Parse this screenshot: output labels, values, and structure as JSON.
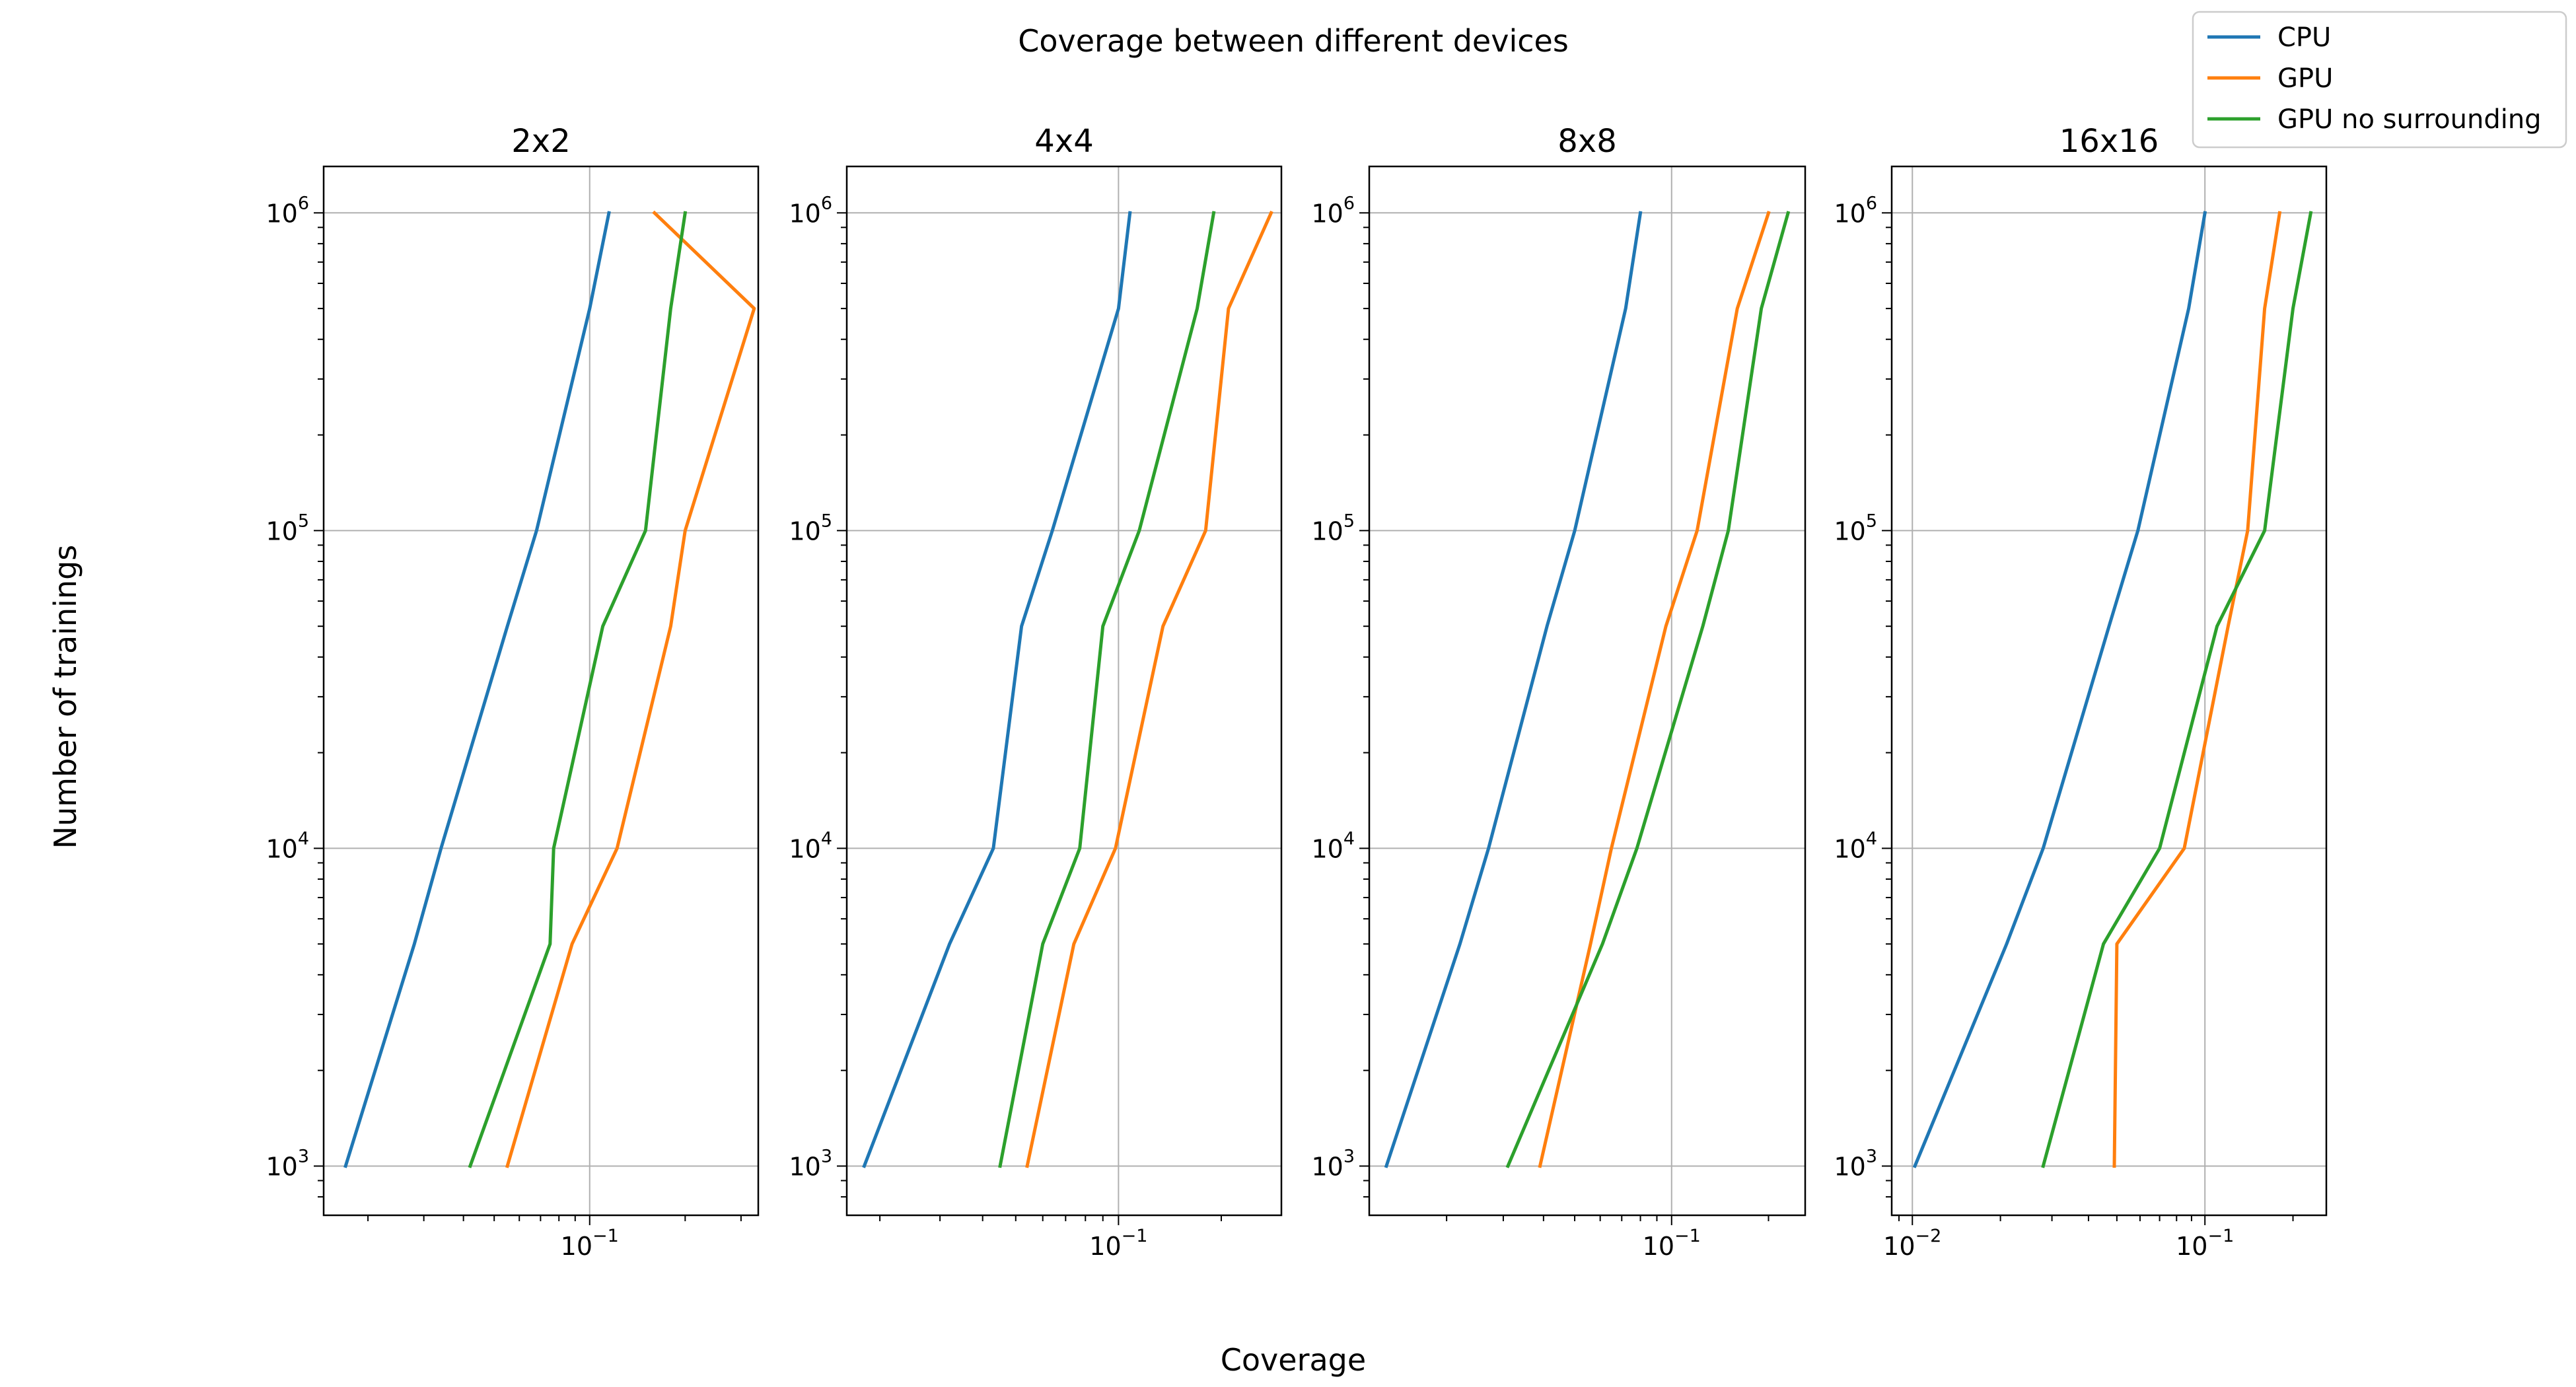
{
  "figure": {
    "suptitle": "Coverage between different devices",
    "xlabel": "Coverage",
    "ylabel": "Number of trainings"
  },
  "legend": {
    "placement": "top-right",
    "entries": [
      {
        "name": "CPU",
        "color": "#1f77b4"
      },
      {
        "name": "GPU",
        "color": "#ff7f0e"
      },
      {
        "name": "GPU no surrounding",
        "color": "#2ca02c"
      }
    ]
  },
  "tick_text": {
    "base": "10",
    "x_exp_minus1": "−1",
    "x_exp_minus2": "−2"
  },
  "chart_data": [
    {
      "type": "line",
      "title": "2x2",
      "x_scale": "log",
      "y_scale": "log",
      "xlim": [
        0.0145,
        0.34
      ],
      "ylim": [
        700,
        1400000
      ],
      "xticks": [
        {
          "value": 0.1,
          "exp": "−1"
        }
      ],
      "yticks": [
        {
          "value": 1000,
          "exp": "3"
        },
        {
          "value": 10000,
          "exp": "4"
        },
        {
          "value": 100000,
          "exp": "5"
        },
        {
          "value": 1000000,
          "exp": "6"
        }
      ],
      "grid": true,
      "series": [
        {
          "name": "CPU",
          "color": "#1f77b4",
          "points": [
            [
              0.017,
              1000
            ],
            [
              0.028,
              5000
            ],
            [
              0.034,
              10000
            ],
            [
              0.055,
              50000
            ],
            [
              0.068,
              100000
            ],
            [
              0.1,
              500000
            ],
            [
              0.115,
              1000000
            ]
          ]
        },
        {
          "name": "GPU",
          "color": "#ff7f0e",
          "points": [
            [
              0.055,
              1000
            ],
            [
              0.088,
              5000
            ],
            [
              0.122,
              10000
            ],
            [
              0.18,
              50000
            ],
            [
              0.2,
              100000
            ],
            [
              0.33,
              500000
            ],
            [
              0.16,
              1000000
            ]
          ]
        },
        {
          "name": "GPU no surrounding",
          "color": "#2ca02c",
          "points": [
            [
              0.042,
              1000
            ],
            [
              0.075,
              5000
            ],
            [
              0.077,
              10000
            ],
            [
              0.11,
              50000
            ],
            [
              0.15,
              100000
            ],
            [
              0.18,
              500000
            ],
            [
              0.2,
              1000000
            ]
          ]
        }
      ]
    },
    {
      "type": "line",
      "title": "4x4",
      "x_scale": "log",
      "y_scale": "log",
      "xlim": [
        0.016,
        0.3
      ],
      "ylim": [
        700,
        1400000
      ],
      "xticks": [
        {
          "value": 0.1,
          "exp": "−1"
        }
      ],
      "yticks": [
        {
          "value": 1000,
          "exp": "3"
        },
        {
          "value": 10000,
          "exp": "4"
        },
        {
          "value": 100000,
          "exp": "5"
        },
        {
          "value": 1000000,
          "exp": "6"
        }
      ],
      "grid": true,
      "series": [
        {
          "name": "CPU",
          "color": "#1f77b4",
          "points": [
            [
              0.018,
              1000
            ],
            [
              0.032,
              5000
            ],
            [
              0.043,
              10000
            ],
            [
              0.052,
              50000
            ],
            [
              0.064,
              100000
            ],
            [
              0.1,
              500000
            ],
            [
              0.108,
              1000000
            ]
          ]
        },
        {
          "name": "GPU",
          "color": "#ff7f0e",
          "points": [
            [
              0.054,
              1000
            ],
            [
              0.074,
              5000
            ],
            [
              0.098,
              10000
            ],
            [
              0.135,
              50000
            ],
            [
              0.18,
              100000
            ],
            [
              0.21,
              500000
            ],
            [
              0.28,
              1000000
            ]
          ]
        },
        {
          "name": "GPU no surrounding",
          "color": "#2ca02c",
          "points": [
            [
              0.045,
              1000
            ],
            [
              0.06,
              5000
            ],
            [
              0.077,
              10000
            ],
            [
              0.09,
              50000
            ],
            [
              0.115,
              100000
            ],
            [
              0.17,
              500000
            ],
            [
              0.19,
              1000000
            ]
          ]
        }
      ]
    },
    {
      "type": "line",
      "title": "8x8",
      "x_scale": "log",
      "y_scale": "log",
      "xlim": [
        0.0115,
        0.26
      ],
      "ylim": [
        700,
        1400000
      ],
      "xticks": [
        {
          "value": 0.1,
          "exp": "−1"
        }
      ],
      "yticks": [
        {
          "value": 1000,
          "exp": "3"
        },
        {
          "value": 10000,
          "exp": "4"
        },
        {
          "value": 100000,
          "exp": "5"
        },
        {
          "value": 1000000,
          "exp": "6"
        }
      ],
      "grid": true,
      "series": [
        {
          "name": "CPU",
          "color": "#1f77b4",
          "points": [
            [
              0.013,
              1000
            ],
            [
              0.022,
              5000
            ],
            [
              0.027,
              10000
            ],
            [
              0.041,
              50000
            ],
            [
              0.05,
              100000
            ],
            [
              0.072,
              500000
            ],
            [
              0.08,
              1000000
            ]
          ]
        },
        {
          "name": "GPU",
          "color": "#ff7f0e",
          "points": [
            [
              0.039,
              1000
            ],
            [
              0.056,
              5000
            ],
            [
              0.065,
              10000
            ],
            [
              0.096,
              50000
            ],
            [
              0.12,
              100000
            ],
            [
              0.16,
              500000
            ],
            [
              0.2,
              1000000
            ]
          ]
        },
        {
          "name": "GPU no surrounding",
          "color": "#2ca02c",
          "points": [
            [
              0.031,
              1000
            ],
            [
              0.061,
              5000
            ],
            [
              0.078,
              10000
            ],
            [
              0.125,
              50000
            ],
            [
              0.15,
              100000
            ],
            [
              0.19,
              500000
            ],
            [
              0.23,
              1000000
            ]
          ]
        }
      ]
    },
    {
      "type": "line",
      "title": "16x16",
      "x_scale": "log",
      "y_scale": "log",
      "xlim": [
        0.0085,
        0.26
      ],
      "ylim": [
        700,
        1400000
      ],
      "xticks": [
        {
          "value": 0.01,
          "exp": "−2"
        },
        {
          "value": 0.1,
          "exp": "−1"
        }
      ],
      "yticks": [
        {
          "value": 1000,
          "exp": "3"
        },
        {
          "value": 10000,
          "exp": "4"
        },
        {
          "value": 100000,
          "exp": "5"
        },
        {
          "value": 1000000,
          "exp": "6"
        }
      ],
      "grid": true,
      "series": [
        {
          "name": "CPU",
          "color": "#1f77b4",
          "points": [
            [
              0.0102,
              1000
            ],
            [
              0.021,
              5000
            ],
            [
              0.028,
              10000
            ],
            [
              0.047,
              50000
            ],
            [
              0.059,
              100000
            ],
            [
              0.088,
              500000
            ],
            [
              0.1,
              1000000
            ]
          ]
        },
        {
          "name": "GPU",
          "color": "#ff7f0e",
          "points": [
            [
              0.049,
              1000
            ],
            [
              0.05,
              5000
            ],
            [
              0.085,
              10000
            ],
            [
              0.12,
              50000
            ],
            [
              0.14,
              100000
            ],
            [
              0.16,
              500000
            ],
            [
              0.18,
              1000000
            ]
          ]
        },
        {
          "name": "GPU no surrounding",
          "color": "#2ca02c",
          "points": [
            [
              0.028,
              1000
            ],
            [
              0.045,
              5000
            ],
            [
              0.07,
              10000
            ],
            [
              0.11,
              50000
            ],
            [
              0.16,
              100000
            ],
            [
              0.2,
              500000
            ],
            [
              0.23,
              1000000
            ]
          ]
        }
      ]
    }
  ]
}
